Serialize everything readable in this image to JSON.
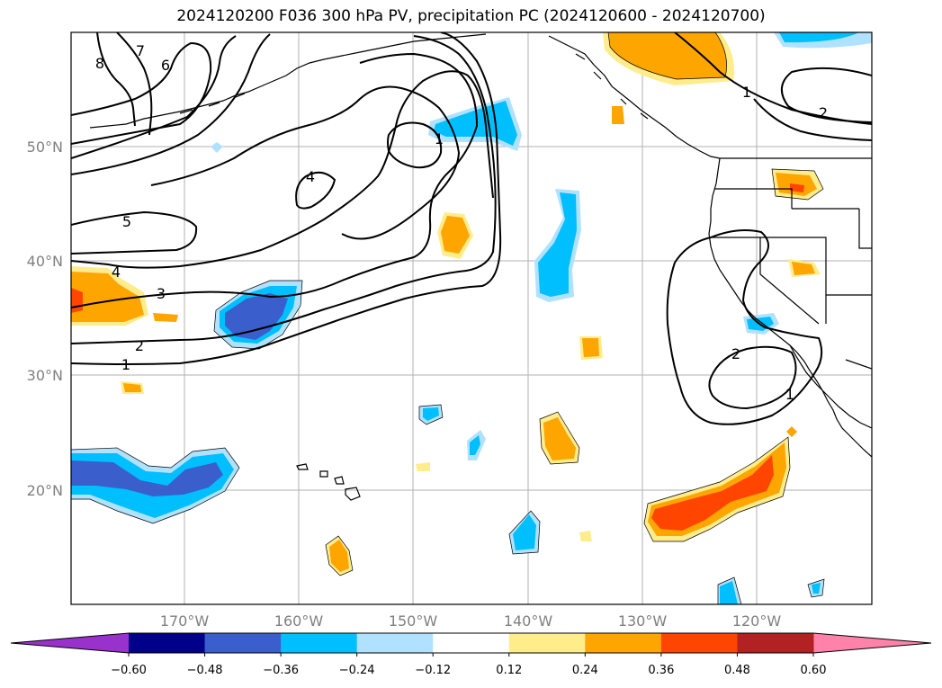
{
  "title": "2024120200 F036 300 hPa PV, precipitation PC (2024120600 - 2024120700)",
  "map": {
    "lat_ticks": [
      "50°N",
      "40°N",
      "30°N",
      "20°N"
    ],
    "lon_ticks": [
      "170°W",
      "160°W",
      "150°W",
      "140°W",
      "130°W",
      "120°W"
    ],
    "contour_labels": [
      "8",
      "7",
      "6",
      "5",
      "4",
      "3",
      "2",
      "1",
      "4",
      "1",
      "2",
      "1",
      "2",
      "1"
    ]
  },
  "colorbar": {
    "ticks": [
      "−0.60",
      "−0.48",
      "−0.36",
      "−0.24",
      "−0.12",
      "0.12",
      "0.24",
      "0.36",
      "0.48",
      "0.60"
    ],
    "colors": [
      "#9932cc",
      "#00008b",
      "#3a5fcd",
      "#00bfff",
      "#b0e2ff",
      "#ffffff",
      "#ffec8b",
      "#ffa500",
      "#ff4500",
      "#b22222",
      "#ff82ab"
    ]
  }
}
